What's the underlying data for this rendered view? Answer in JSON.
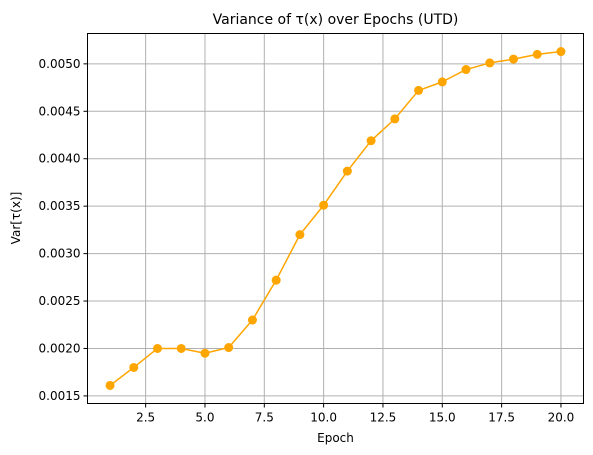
{
  "chart_data": {
    "type": "line",
    "title": "Variance of τ(x) over Epochs (UTD)",
    "xlabel": "Epoch",
    "ylabel": "Var[τ(x)]",
    "xlim": [
      0.05,
      20.95
    ],
    "ylim": [
      0.00142,
      0.00532
    ],
    "xticks": [
      2.5,
      5.0,
      7.5,
      10.0,
      12.5,
      15.0,
      17.5,
      20.0
    ],
    "xtick_labels": [
      "2.5",
      "5.0",
      "7.5",
      "10.0",
      "12.5",
      "15.0",
      "17.5",
      "20.0"
    ],
    "yticks": [
      0.0015,
      0.002,
      0.0025,
      0.003,
      0.0035,
      0.004,
      0.0045,
      0.005
    ],
    "ytick_labels": [
      "0.0015",
      "0.0020",
      "0.0025",
      "0.0030",
      "0.0035",
      "0.0040",
      "0.0045",
      "0.0050"
    ],
    "grid": true,
    "series": [
      {
        "color": "#ffa500",
        "marker": "circle",
        "x": [
          1,
          2,
          3,
          4,
          5,
          6,
          7,
          8,
          9,
          10,
          11,
          12,
          13,
          14,
          15,
          16,
          17,
          18,
          19,
          20
        ],
        "y": [
          0.00161,
          0.0018,
          0.002,
          0.002,
          0.00195,
          0.00201,
          0.0023,
          0.00272,
          0.0032,
          0.00351,
          0.00387,
          0.00419,
          0.00442,
          0.00472,
          0.00481,
          0.00494,
          0.00501,
          0.00505,
          0.0051,
          0.00513
        ]
      }
    ]
  }
}
